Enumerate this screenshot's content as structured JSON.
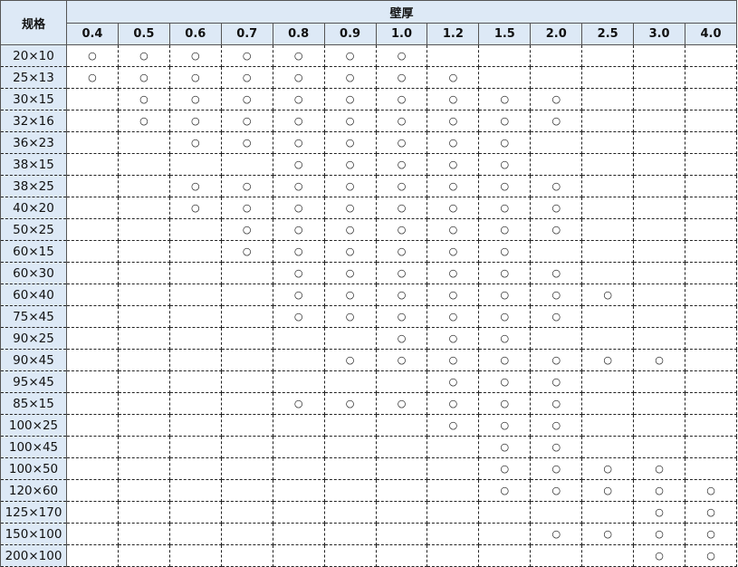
{
  "table": {
    "spec_header": "规格",
    "thickness_header": "壁厚",
    "thickness_columns": [
      "0.4",
      "0.5",
      "0.6",
      "0.7",
      "0.8",
      "0.9",
      "1.0",
      "1.2",
      "1.5",
      "2.0",
      "2.5",
      "3.0",
      "4.0"
    ],
    "mark_symbol": "○",
    "header_bg_color": "#dde9f6",
    "rows": [
      {
        "spec": "20×10",
        "from": "0.4",
        "to": "1.0"
      },
      {
        "spec": "25×13",
        "from": "0.4",
        "to": "1.2"
      },
      {
        "spec": "30×15",
        "from": "0.5",
        "to": "2.0"
      },
      {
        "spec": "32×16",
        "from": "0.5",
        "to": "2.0"
      },
      {
        "spec": "36×23",
        "from": "0.6",
        "to": "1.5"
      },
      {
        "spec": "38×15",
        "from": "0.8",
        "to": "1.5"
      },
      {
        "spec": "38×25",
        "from": "0.6",
        "to": "2.0"
      },
      {
        "spec": "40×20",
        "from": "0.6",
        "to": "2.0"
      },
      {
        "spec": "50×25",
        "from": "0.7",
        "to": "2.0"
      },
      {
        "spec": "60×15",
        "from": "0.7",
        "to": "1.5"
      },
      {
        "spec": "60×30",
        "from": "0.8",
        "to": "2.0"
      },
      {
        "spec": "60×40",
        "from": "0.8",
        "to": "2.5"
      },
      {
        "spec": "75×45",
        "from": "0.8",
        "to": "2.0"
      },
      {
        "spec": "90×25",
        "from": "1.0",
        "to": "1.5"
      },
      {
        "spec": "90×45",
        "from": "0.9",
        "to": "3.0"
      },
      {
        "spec": "95×45",
        "from": "1.2",
        "to": "2.0"
      },
      {
        "spec": "85×15",
        "from": "0.8",
        "to": "2.0"
      },
      {
        "spec": "100×25",
        "from": "1.2",
        "to": "2.0"
      },
      {
        "spec": "100×45",
        "from": "1.5",
        "to": "2.0"
      },
      {
        "spec": "100×50",
        "from": "1.5",
        "to": "3.0"
      },
      {
        "spec": "120×60",
        "from": "1.5",
        "to": "4.0"
      },
      {
        "spec": "125×170",
        "from": "3.0",
        "to": "4.0"
      },
      {
        "spec": "150×100",
        "from": "2.0",
        "to": "4.0"
      },
      {
        "spec": "200×100",
        "from": "3.0",
        "to": "4.0"
      }
    ]
  }
}
